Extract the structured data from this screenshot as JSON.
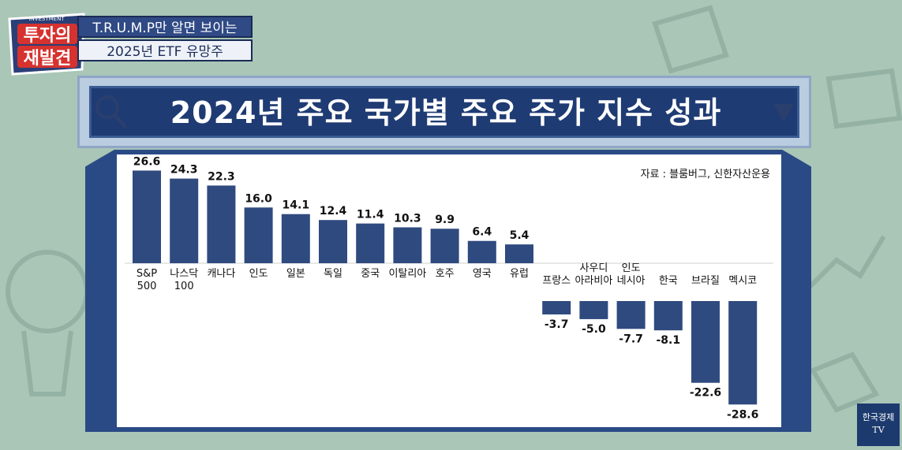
{
  "brand": {
    "logo_top": "INVESTMENT",
    "logo_line1": "투자의",
    "logo_line2": "재발견",
    "subtitle_line1": "T.R.U.M.P만 알면 보이는",
    "subtitle_line2": "2025년 ETF 유망주"
  },
  "header": {
    "title": "2024년 주요 국가별 주요 주가 지수 성과"
  },
  "source": "자료 : 블룸버그, 신한자산운용",
  "watermark": {
    "line1": "한국경제",
    "line2": "TV"
  },
  "colors": {
    "bar": "#2f4a7f",
    "panel_frame": "#2a4a86",
    "background": "#a9c6b7"
  },
  "icons": [
    "search-icon",
    "dropdown-triangle-icon"
  ],
  "chart_data": {
    "type": "bar",
    "title": "2024년 주요 국가별 주요 주가 지수 성과",
    "xlabel": "",
    "ylabel": "",
    "grid": false,
    "categories": [
      [
        "S&P",
        "500"
      ],
      [
        "나스닥",
        "100"
      ],
      [
        "캐나다"
      ],
      [
        "인도"
      ],
      [
        "일본"
      ],
      [
        "독일"
      ],
      [
        "중국"
      ],
      [
        "이탈리아"
      ],
      [
        "호주"
      ],
      [
        "영국"
      ],
      [
        "유럽"
      ],
      [
        "프랑스"
      ],
      [
        "사우디",
        "아라비아"
      ],
      [
        "인도",
        "네시아"
      ],
      [
        "한국"
      ],
      [
        "브라질"
      ],
      [
        "멕시코"
      ]
    ],
    "values": [
      26.6,
      24.3,
      22.3,
      16.0,
      14.1,
      12.4,
      11.4,
      10.3,
      9.9,
      6.4,
      5.4,
      -3.7,
      -5.0,
      -7.7,
      -8.1,
      -22.6,
      -28.6
    ],
    "value_labels": [
      "26.6",
      "24.3",
      "22.3",
      "16.0",
      "14.1",
      "12.4",
      "11.4",
      "10.3",
      "9.9",
      "6.4",
      "5.4",
      "-3.7",
      "-5.0",
      "-7.7",
      "-8.1",
      "-22.6",
      "-28.6"
    ],
    "ylim": [
      -32,
      30
    ]
  }
}
